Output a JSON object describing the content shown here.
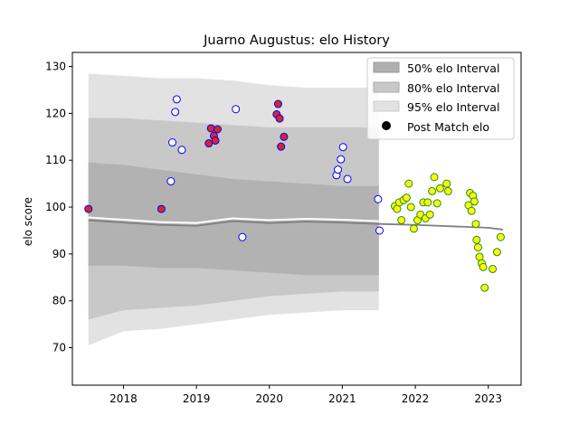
{
  "chart_data": {
    "type": "scatter",
    "title": "Juarno Augustus: elo History",
    "xlabel": "",
    "ylabel": "elo score",
    "xlim": [
      2017.3,
      2023.45
    ],
    "ylim": [
      62,
      133
    ],
    "x_ticks": [
      2018,
      2019,
      2020,
      2021,
      2022,
      2023
    ],
    "y_ticks": [
      70,
      80,
      90,
      100,
      110,
      120,
      130
    ],
    "grid": false,
    "legend_position": "top-right",
    "legend": [
      {
        "label": "50% elo Interval",
        "kind": "patch",
        "color": "#b0b0b0"
      },
      {
        "label": "80% elo Interval",
        "kind": "patch",
        "color": "#c8c8c8"
      },
      {
        "label": "95% elo Interval",
        "kind": "patch",
        "color": "#e2e2e2"
      },
      {
        "label": "Post Match elo",
        "kind": "marker",
        "color": "#000000"
      }
    ],
    "bands": {
      "x": [
        2017.52,
        2018.0,
        2018.5,
        2019.0,
        2019.5,
        2020.0,
        2020.5,
        2021.0,
        2021.5
      ],
      "p95_upper": [
        128.5,
        128.0,
        127.5,
        127.5,
        127.0,
        126.0,
        125.5,
        125.5,
        125.5
      ],
      "p95_lower": [
        70.5,
        73.5,
        74.0,
        75.0,
        76.0,
        77.0,
        77.5,
        78.0,
        78.0
      ],
      "p80_upper": [
        119.0,
        119.0,
        118.5,
        118.0,
        117.5,
        117.0,
        117.0,
        117.0,
        117.0
      ],
      "p80_lower": [
        76.0,
        78.0,
        78.5,
        79.0,
        80.0,
        81.0,
        81.5,
        82.0,
        82.0
      ],
      "p50_upper": [
        109.5,
        109.0,
        108.0,
        107.0,
        106.0,
        105.5,
        105.0,
        104.5,
        104.5
      ],
      "p50_lower": [
        87.5,
        87.5,
        87.0,
        87.0,
        86.5,
        86.0,
        85.5,
        85.5,
        85.5
      ]
    },
    "median_line": {
      "x": [
        2017.52,
        2018.0,
        2018.5,
        2019.0,
        2019.5,
        2020.0,
        2020.5,
        2021.0,
        2021.5,
        2022.0,
        2022.5,
        2023.0,
        2023.2
      ],
      "y": [
        97.8,
        97.3,
        96.8,
        96.6,
        97.6,
        97.2,
        97.5,
        97.3,
        97.0,
        96.8,
        96.5,
        96.2,
        95.8
      ]
    },
    "series": [
      {
        "name": "Post Match elo",
        "points": [
          {
            "x": 2017.52,
            "y": 99.6,
            "fill": "#d62728",
            "edge": "#0000ff"
          },
          {
            "x": 2018.52,
            "y": 99.6,
            "fill": "#d62728",
            "edge": "#0000ff"
          },
          {
            "x": 2018.65,
            "y": 105.5,
            "fill": "#ffffff",
            "edge": "#0000ff"
          },
          {
            "x": 2018.67,
            "y": 113.8,
            "fill": "#ffffff",
            "edge": "#0000ff"
          },
          {
            "x": 2018.71,
            "y": 120.3,
            "fill": "#ffffff",
            "edge": "#0000ff"
          },
          {
            "x": 2018.73,
            "y": 123.0,
            "fill": "#ffffff",
            "edge": "#0000ff"
          },
          {
            "x": 2018.8,
            "y": 112.2,
            "fill": "#ffffff",
            "edge": "#0000ff"
          },
          {
            "x": 2019.17,
            "y": 113.6,
            "fill": "#d62728",
            "edge": "#0000ff"
          },
          {
            "x": 2019.2,
            "y": 116.8,
            "fill": "#d62728",
            "edge": "#0000ff"
          },
          {
            "x": 2019.24,
            "y": 115.2,
            "fill": "#d62728",
            "edge": "#0000ff"
          },
          {
            "x": 2019.26,
            "y": 114.2,
            "fill": "#d62728",
            "edge": "#0000ff"
          },
          {
            "x": 2019.29,
            "y": 116.6,
            "fill": "#d62728",
            "edge": "#0000ff"
          },
          {
            "x": 2019.54,
            "y": 120.9,
            "fill": "#ffffff",
            "edge": "#0000ff"
          },
          {
            "x": 2019.63,
            "y": 93.6,
            "fill": "#ffffff",
            "edge": "#0000ff"
          },
          {
            "x": 2020.1,
            "y": 119.8,
            "fill": "#d62728",
            "edge": "#0000ff"
          },
          {
            "x": 2020.12,
            "y": 122.0,
            "fill": "#d62728",
            "edge": "#0000ff"
          },
          {
            "x": 2020.14,
            "y": 118.9,
            "fill": "#d62728",
            "edge": "#0000ff"
          },
          {
            "x": 2020.16,
            "y": 112.9,
            "fill": "#d62728",
            "edge": "#0000ff"
          },
          {
            "x": 2020.2,
            "y": 115.0,
            "fill": "#d62728",
            "edge": "#0000ff"
          },
          {
            "x": 2020.92,
            "y": 106.8,
            "fill": "#ffffff",
            "edge": "#0000ff"
          },
          {
            "x": 2020.94,
            "y": 108.0,
            "fill": "#ffffff",
            "edge": "#0000ff"
          },
          {
            "x": 2020.98,
            "y": 110.2,
            "fill": "#ffffff",
            "edge": "#0000ff"
          },
          {
            "x": 2021.01,
            "y": 112.8,
            "fill": "#ffffff",
            "edge": "#0000ff"
          },
          {
            "x": 2021.07,
            "y": 106.0,
            "fill": "#ffffff",
            "edge": "#0000ff"
          },
          {
            "x": 2021.49,
            "y": 101.7,
            "fill": "#ffffff",
            "edge": "#0000ff"
          },
          {
            "x": 2021.51,
            "y": 95.0,
            "fill": "#ffffff",
            "edge": "#0000ff"
          },
          {
            "x": 2021.72,
            "y": 100.2,
            "fill": "#ffff00",
            "edge": "#228b22"
          },
          {
            "x": 2021.75,
            "y": 99.6,
            "fill": "#ffff00",
            "edge": "#228b22"
          },
          {
            "x": 2021.78,
            "y": 101.0,
            "fill": "#ffff00",
            "edge": "#228b22"
          },
          {
            "x": 2021.81,
            "y": 97.2,
            "fill": "#ffff00",
            "edge": "#228b22"
          },
          {
            "x": 2021.84,
            "y": 101.5,
            "fill": "#ffff00",
            "edge": "#228b22"
          },
          {
            "x": 2021.88,
            "y": 102.0,
            "fill": "#ffff00",
            "edge": "#228b22"
          },
          {
            "x": 2021.91,
            "y": 105.0,
            "fill": "#ffff00",
            "edge": "#228b22"
          },
          {
            "x": 2021.94,
            "y": 100.0,
            "fill": "#ffff00",
            "edge": "#228b22"
          },
          {
            "x": 2021.98,
            "y": 95.4,
            "fill": "#ffff00",
            "edge": "#228b22"
          },
          {
            "x": 2022.03,
            "y": 97.2,
            "fill": "#ffff00",
            "edge": "#228b22"
          },
          {
            "x": 2022.07,
            "y": 98.4,
            "fill": "#ffff00",
            "edge": "#228b22"
          },
          {
            "x": 2022.11,
            "y": 101.0,
            "fill": "#ffff00",
            "edge": "#228b22"
          },
          {
            "x": 2022.14,
            "y": 97.6,
            "fill": "#ffff00",
            "edge": "#228b22"
          },
          {
            "x": 2022.17,
            "y": 101.0,
            "fill": "#ffff00",
            "edge": "#228b22"
          },
          {
            "x": 2022.2,
            "y": 98.4,
            "fill": "#ffff00",
            "edge": "#228b22"
          },
          {
            "x": 2022.23,
            "y": 103.4,
            "fill": "#ffff00",
            "edge": "#228b22"
          },
          {
            "x": 2022.26,
            "y": 106.4,
            "fill": "#ffff00",
            "edge": "#228b22"
          },
          {
            "x": 2022.3,
            "y": 100.8,
            "fill": "#ffff00",
            "edge": "#228b22"
          },
          {
            "x": 2022.34,
            "y": 104.0,
            "fill": "#ffff00",
            "edge": "#228b22"
          },
          {
            "x": 2022.43,
            "y": 105.0,
            "fill": "#ffff00",
            "edge": "#228b22"
          },
          {
            "x": 2022.45,
            "y": 103.4,
            "fill": "#ffff00",
            "edge": "#228b22"
          },
          {
            "x": 2022.73,
            "y": 100.4,
            "fill": "#ffff00",
            "edge": "#228b22"
          },
          {
            "x": 2022.75,
            "y": 103.0,
            "fill": "#ffff00",
            "edge": "#228b22"
          },
          {
            "x": 2022.77,
            "y": 99.2,
            "fill": "#ffff00",
            "edge": "#228b22"
          },
          {
            "x": 2022.79,
            "y": 102.4,
            "fill": "#ffff00",
            "edge": "#228b22"
          },
          {
            "x": 2022.81,
            "y": 101.2,
            "fill": "#ffff00",
            "edge": "#228b22"
          },
          {
            "x": 2022.83,
            "y": 96.4,
            "fill": "#ffff00",
            "edge": "#228b22"
          },
          {
            "x": 2022.84,
            "y": 93.0,
            "fill": "#ffff00",
            "edge": "#228b22"
          },
          {
            "x": 2022.86,
            "y": 91.4,
            "fill": "#ffff00",
            "edge": "#228b22"
          },
          {
            "x": 2022.88,
            "y": 89.4,
            "fill": "#ffff00",
            "edge": "#228b22"
          },
          {
            "x": 2022.91,
            "y": 88.0,
            "fill": "#ffff00",
            "edge": "#228b22"
          },
          {
            "x": 2022.93,
            "y": 87.2,
            "fill": "#ffff00",
            "edge": "#228b22"
          },
          {
            "x": 2022.95,
            "y": 82.8,
            "fill": "#ffff00",
            "edge": "#228b22"
          },
          {
            "x": 2023.06,
            "y": 86.8,
            "fill": "#ffff00",
            "edge": "#228b22"
          },
          {
            "x": 2023.12,
            "y": 90.4,
            "fill": "#ffff00",
            "edge": "#228b22"
          },
          {
            "x": 2023.17,
            "y": 93.6,
            "fill": "#ffff00",
            "edge": "#228b22"
          }
        ]
      }
    ]
  }
}
